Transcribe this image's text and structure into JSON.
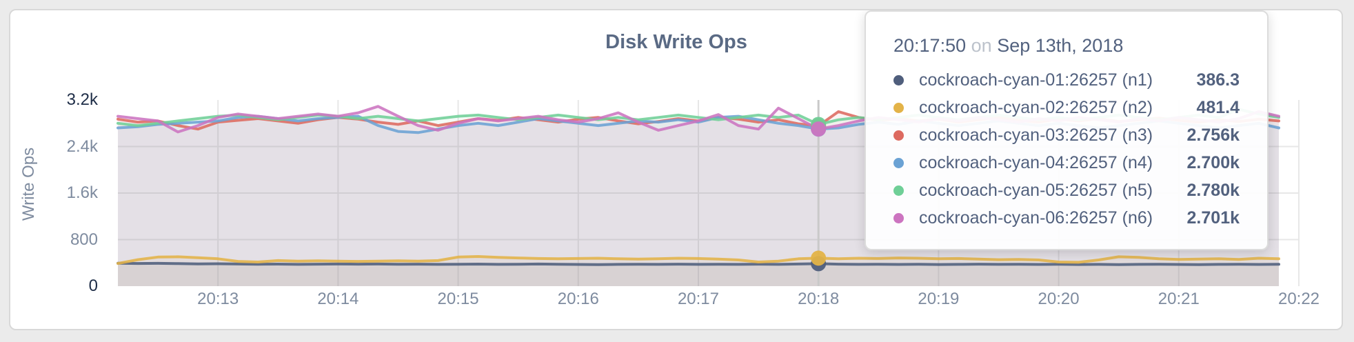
{
  "page": {
    "background": "#ebebeb"
  },
  "chart_data": {
    "type": "area",
    "title": "Disk Write Ops",
    "ylabel": "Write Ops",
    "ylim": [
      0,
      3200
    ],
    "grid": true,
    "x_tick_labels": [
      "20:13",
      "20:14",
      "20:15",
      "20:16",
      "20:17",
      "20:18",
      "20:19",
      "20:20",
      "20:21",
      "20:22"
    ],
    "x_first_tick_index": 5,
    "x_points_per_tick": 6,
    "x_total_points": 59,
    "y_ticks": [
      {
        "label": "3.2k",
        "value": 3200,
        "gridline": false,
        "emphasis": true
      },
      {
        "label": "2.4k",
        "value": 2400,
        "gridline": true,
        "emphasis": false
      },
      {
        "label": "1.6k",
        "value": 1600,
        "gridline": true,
        "emphasis": false
      },
      {
        "label": "800",
        "value": 800,
        "gridline": true,
        "emphasis": false
      },
      {
        "label": "0",
        "value": 0,
        "gridline": false,
        "emphasis": true
      }
    ],
    "hover_index": 35,
    "style": {
      "fill_opacity": 0.08,
      "stroke_opacity": 0.88,
      "stroke_width": 4,
      "grid_color": "#e7e7e7",
      "hover_line_color": "#c9c9c9",
      "hover_dot_radius": 11
    },
    "series": [
      {
        "name": "cockroach-cyan-01:26257 (n1)",
        "color": "#4f5e7c",
        "values": [
          395,
          390,
          392,
          387,
          383,
          385,
          380,
          377,
          379,
          375,
          378,
          381,
          378,
          380,
          376,
          378,
          374,
          376,
          379,
          374,
          377,
          380,
          376,
          373,
          370,
          374,
          377,
          375,
          378,
          374,
          377,
          374,
          378,
          375,
          380,
          386.3,
          378,
          374,
          377,
          373,
          376,
          372,
          375,
          378,
          374,
          377,
          373,
          376,
          372,
          375,
          371,
          374,
          377,
          373,
          370,
          374,
          377,
          373,
          376
        ]
      },
      {
        "name": "cockroach-cyan-02:26257 (n2)",
        "color": "#e3b348",
        "values": [
          390,
          455,
          500,
          505,
          490,
          470,
          425,
          415,
          440,
          430,
          435,
          430,
          425,
          430,
          435,
          430,
          440,
          500,
          510,
          495,
          485,
          475,
          470,
          475,
          480,
          470,
          465,
          470,
          480,
          475,
          465,
          450,
          415,
          430,
          470,
          481.4,
          470,
          480,
          475,
          485,
          480,
          470,
          475,
          465,
          455,
          460,
          450,
          415,
          410,
          450,
          505,
          495,
          470,
          460,
          465,
          470,
          460,
          480,
          470
        ]
      },
      {
        "name": "cockroach-cyan-03:26257 (n3)",
        "color": "#dd6a60",
        "values": [
          2870,
          2820,
          2840,
          2760,
          2700,
          2820,
          2850,
          2880,
          2840,
          2800,
          2860,
          2900,
          2870,
          2820,
          2780,
          2840,
          2760,
          2820,
          2880,
          2850,
          2900,
          2860,
          2820,
          2870,
          2900,
          2840,
          2790,
          2830,
          2880,
          2840,
          2900,
          2870,
          2820,
          2860,
          2790,
          2756,
          3000,
          2900,
          2850,
          2880,
          2840,
          2870,
          2820,
          2860,
          2900,
          2850,
          2820,
          2870,
          2840,
          2880,
          2830,
          2860,
          2890,
          2850,
          2820,
          2860,
          2830,
          2870,
          2840
        ]
      },
      {
        "name": "cockroach-cyan-04:26257 (n4)",
        "color": "#6ba2d4",
        "values": [
          2720,
          2740,
          2780,
          2800,
          2820,
          2840,
          2900,
          2920,
          2880,
          2840,
          2880,
          2900,
          2920,
          2760,
          2660,
          2640,
          2700,
          2760,
          2800,
          2760,
          2820,
          2880,
          2840,
          2800,
          2760,
          2800,
          2840,
          2820,
          2860,
          2820,
          2900,
          2920,
          2860,
          2800,
          2760,
          2700,
          2720,
          2780,
          2820,
          2780,
          2840,
          2800,
          2760,
          2800,
          2840,
          2800,
          2760,
          2800,
          2760,
          2720,
          2760,
          2800,
          2840,
          2800,
          2760,
          2720,
          2760,
          2800,
          2720
        ]
      },
      {
        "name": "cockroach-cyan-05:26257 (n5)",
        "color": "#6fcf97",
        "values": [
          2800,
          2760,
          2800,
          2840,
          2880,
          2920,
          2940,
          2900,
          2860,
          2900,
          2940,
          2920,
          2880,
          2920,
          2880,
          2840,
          2880,
          2920,
          2940,
          2900,
          2860,
          2900,
          2940,
          2900,
          2860,
          2900,
          2860,
          2900,
          2940,
          2900,
          2860,
          2900,
          2940,
          2900,
          2940,
          2780,
          2860,
          2900,
          2860,
          2900,
          2940,
          2900,
          2860,
          2900,
          2940,
          2900,
          2860,
          2900,
          2860,
          2900,
          2940,
          2900,
          2860,
          2900,
          2940,
          2900,
          3040,
          2960,
          2900
        ]
      },
      {
        "name": "cockroach-cyan-06:26257 (n6)",
        "color": "#cc74c0",
        "values": [
          2920,
          2880,
          2840,
          2650,
          2760,
          2900,
          2960,
          2920,
          2880,
          2920,
          2960,
          2920,
          2980,
          3090,
          2920,
          2760,
          2680,
          2800,
          2880,
          2840,
          2880,
          2920,
          2860,
          2820,
          2880,
          2980,
          2820,
          2680,
          2760,
          2840,
          2950,
          2760,
          2700,
          3060,
          2880,
          2701,
          2760,
          2840,
          2900,
          2860,
          2820,
          2880,
          2840,
          2900,
          2860,
          2820,
          2880,
          2840,
          2900,
          2860,
          2820,
          2880,
          2840,
          2900,
          2860,
          2820,
          2880,
          3000,
          2920
        ]
      }
    ]
  },
  "tooltip": {
    "time": "20:17:50",
    "preposition": "on",
    "date": "Sep 13th, 2018",
    "entries": [
      {
        "label": "cockroach-cyan-01:26257 (n1)",
        "value": "386.3",
        "color": "#4f5e7c"
      },
      {
        "label": "cockroach-cyan-02:26257 (n2)",
        "value": "481.4",
        "color": "#e3b348"
      },
      {
        "label": "cockroach-cyan-03:26257 (n3)",
        "value": "2.756k",
        "color": "#dd6a60"
      },
      {
        "label": "cockroach-cyan-04:26257 (n4)",
        "value": "2.700k",
        "color": "#6ba2d4"
      },
      {
        "label": "cockroach-cyan-05:26257 (n5)",
        "value": "2.780k",
        "color": "#6fcf97"
      },
      {
        "label": "cockroach-cyan-06:26257 (n6)",
        "value": "2.701k",
        "color": "#cc74c0"
      }
    ]
  }
}
